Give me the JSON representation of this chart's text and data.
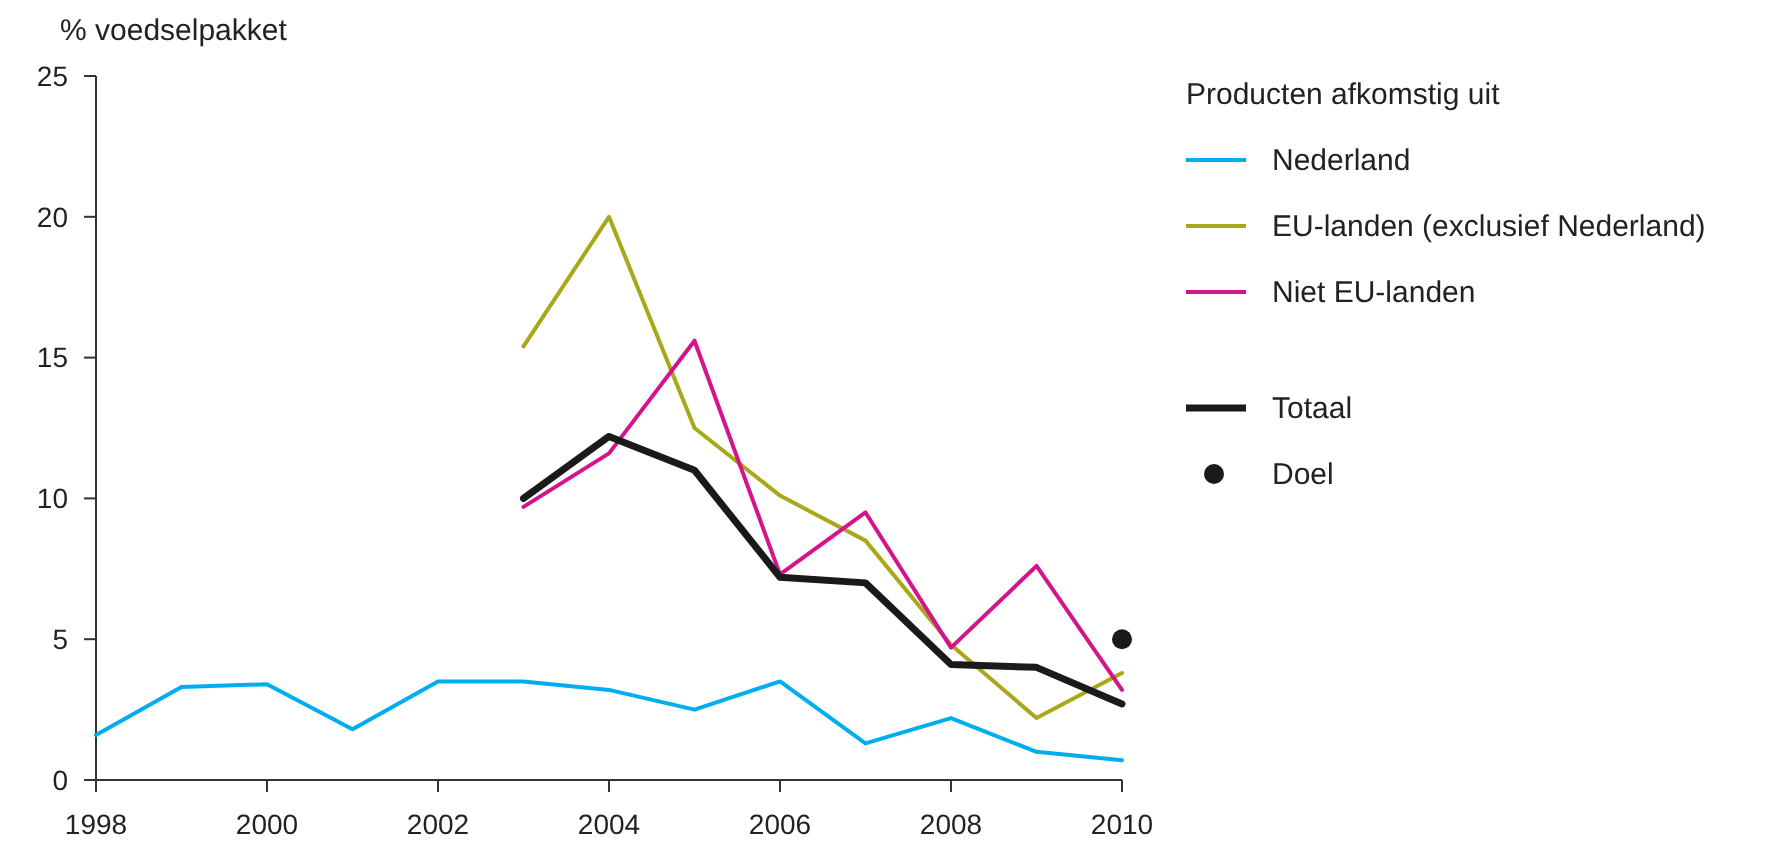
{
  "chart_data": {
    "type": "line",
    "ylabel": "% voedselpakket",
    "legend_title": "Producten afkomstig uit",
    "legend": "top right",
    "grid": false,
    "xlim": [
      1998,
      2010
    ],
    "xticks": [
      1998,
      2000,
      2002,
      2004,
      2006,
      2008,
      2010
    ],
    "ylim": [
      0,
      25
    ],
    "yticks": [
      0,
      5,
      10,
      15,
      20,
      25
    ],
    "series": [
      {
        "name": "Nederland",
        "color": "#00aeef",
        "x": [
          1998,
          1999,
          2000,
          2001,
          2002,
          2003,
          2004,
          2005,
          2006,
          2007,
          2008,
          2009,
          2010
        ],
        "values": [
          1.6,
          3.3,
          3.4,
          1.8,
          3.5,
          3.5,
          3.2,
          2.5,
          3.5,
          1.3,
          2.2,
          1.0,
          0.7
        ]
      },
      {
        "name": "EU-landen (exclusief Nederland)",
        "color": "#a8a81a",
        "x": [
          2003,
          2004,
          2005,
          2006,
          2007,
          2008,
          2009,
          2010
        ],
        "values": [
          15.4,
          20.0,
          12.5,
          10.1,
          8.5,
          4.8,
          2.2,
          3.8
        ]
      },
      {
        "name": "Niet EU-landen",
        "color": "#d4148c",
        "x": [
          2003,
          2004,
          2005,
          2006,
          2007,
          2008,
          2009,
          2010
        ],
        "values": [
          9.7,
          11.6,
          15.6,
          7.3,
          9.5,
          4.7,
          7.6,
          3.2
        ]
      },
      {
        "name": "Totaal",
        "color": "#1a1a1a",
        "x": [
          2003,
          2004,
          2005,
          2006,
          2007,
          2008,
          2009,
          2010
        ],
        "values": [
          10.0,
          12.2,
          11.0,
          7.2,
          7.0,
          4.1,
          4.0,
          2.7
        ]
      },
      {
        "name": "Doel",
        "type": "scatter",
        "marker": "circle",
        "color": "#1a1a1a",
        "x": [
          2010
        ],
        "values": [
          5
        ]
      }
    ]
  }
}
